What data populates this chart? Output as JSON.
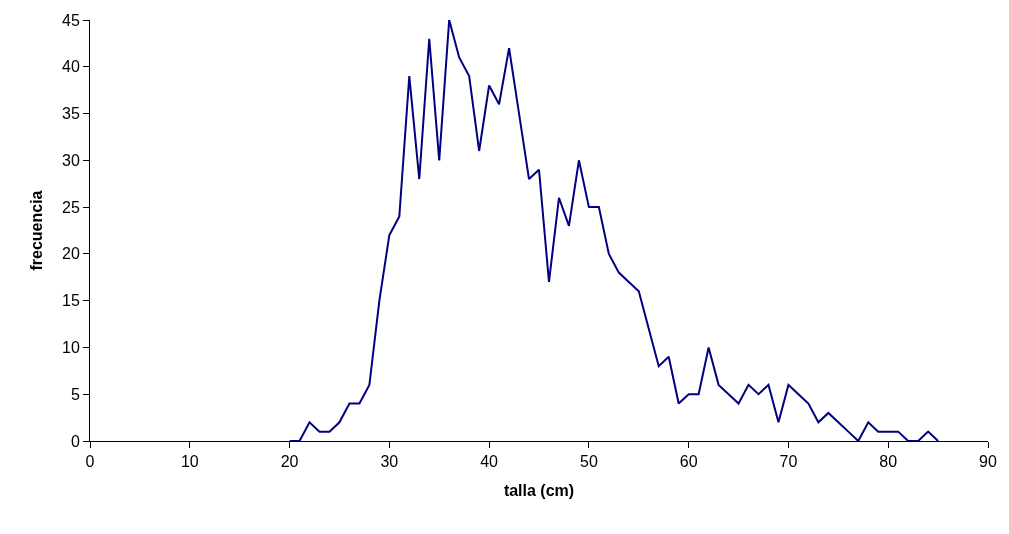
{
  "chart_data": {
    "type": "line",
    "xlabel": "talla (cm)",
    "ylabel": "frecuencia",
    "x": [
      20,
      21,
      22,
      23,
      24,
      25,
      26,
      27,
      28,
      29,
      30,
      31,
      32,
      33,
      34,
      35,
      36,
      37,
      38,
      39,
      40,
      41,
      42,
      43,
      44,
      45,
      46,
      47,
      48,
      49,
      50,
      51,
      52,
      53,
      54,
      55,
      56,
      57,
      58,
      59,
      60,
      61,
      62,
      63,
      64,
      65,
      66,
      67,
      68,
      69,
      70,
      71,
      72,
      73,
      74,
      75,
      76,
      77,
      78,
      79,
      80,
      81,
      82,
      83,
      84,
      85
    ],
    "series": [
      {
        "color": "#000080",
        "values": [
          0,
          0,
          2,
          1,
          1,
          2,
          4,
          4,
          6,
          15,
          22,
          24,
          39,
          28,
          43,
          30,
          45,
          41,
          39,
          31,
          38,
          36,
          42,
          35,
          28,
          29,
          17,
          26,
          23,
          30,
          25,
          25,
          20,
          18,
          17,
          16,
          12,
          8,
          9,
          4,
          5,
          5,
          10,
          6,
          5,
          4,
          6,
          5,
          6,
          2,
          6,
          5,
          4,
          2,
          3,
          2,
          1,
          0,
          2,
          1,
          1,
          1,
          0,
          0,
          1,
          0
        ]
      }
    ],
    "xlim": [
      0,
      90
    ],
    "xticks": [
      0,
      10,
      20,
      30,
      40,
      50,
      60,
      70,
      80,
      90
    ],
    "ylim": [
      0,
      45
    ],
    "yticks": [
      0,
      5,
      10,
      15,
      20,
      25,
      30,
      35,
      40,
      45
    ],
    "marker": "none",
    "line_style": "solid"
  }
}
